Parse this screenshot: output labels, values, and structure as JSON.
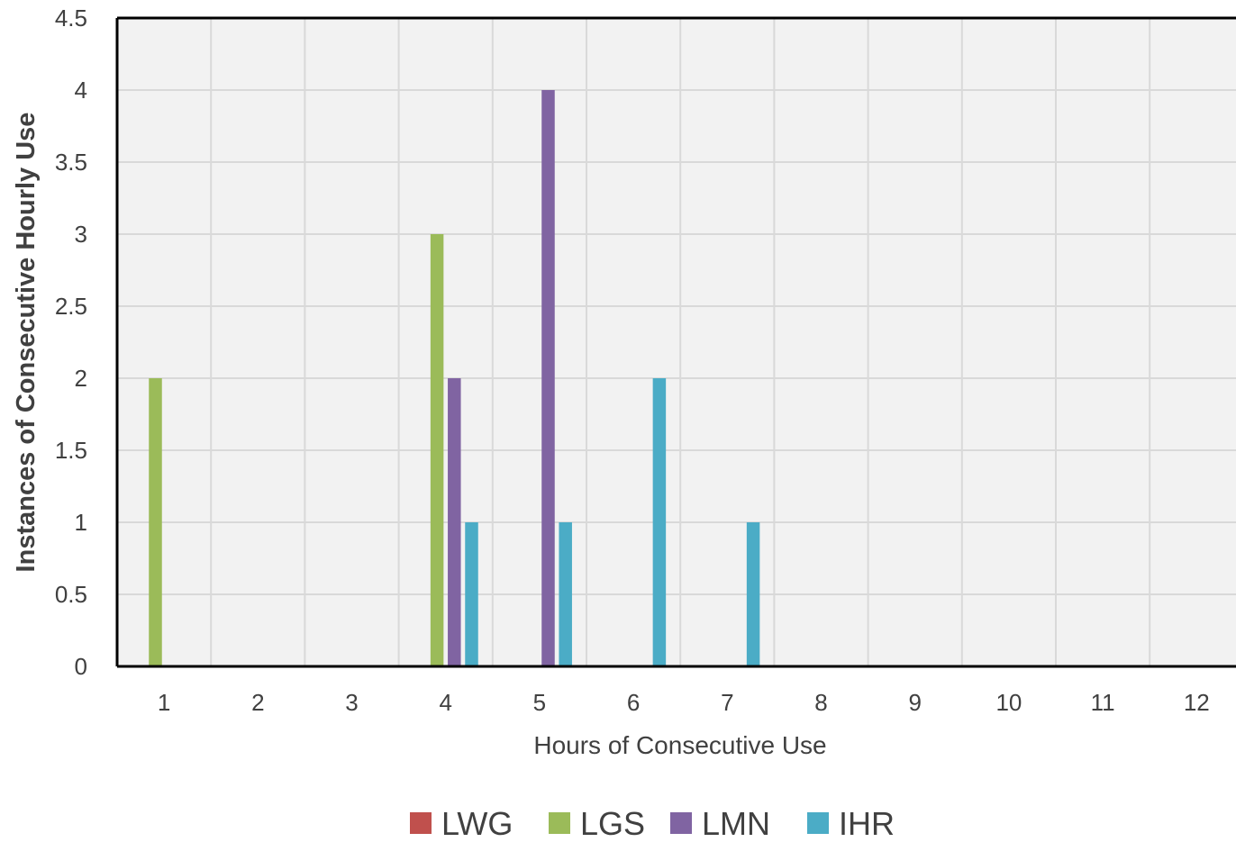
{
  "chart_data": {
    "type": "bar",
    "title": "",
    "xlabel": "Hours of Consecutive Use",
    "ylabel": "Instances of Consecutive Hourly Use",
    "categories": [
      "1",
      "2",
      "3",
      "4",
      "5",
      "6",
      "7",
      "8",
      "9",
      "10",
      "11",
      "12"
    ],
    "ylim": [
      0,
      4.5
    ],
    "yticks": [
      "0",
      "0.5",
      "1",
      "1.5",
      "2",
      "2.5",
      "3",
      "3.5",
      "4",
      "4.5"
    ],
    "grid": true,
    "legend_position": "bottom",
    "series": [
      {
        "name": "LWG",
        "color": "#c0504d",
        "values": [
          0,
          0,
          0,
          0,
          0,
          0,
          0,
          0,
          0,
          0,
          0,
          0
        ]
      },
      {
        "name": "LGS",
        "color": "#9bbb59",
        "values": [
          2,
          0,
          0,
          3,
          0,
          0,
          0,
          0,
          0,
          0,
          0,
          0
        ]
      },
      {
        "name": "LMN",
        "color": "#8064a2",
        "values": [
          0,
          0,
          0,
          2,
          4,
          0,
          0,
          0,
          0,
          0,
          0,
          0
        ]
      },
      {
        "name": "IHR",
        "color": "#4bacc6",
        "values": [
          0,
          0,
          0,
          1,
          1,
          2,
          1,
          0,
          0,
          0,
          0,
          0
        ]
      }
    ]
  }
}
